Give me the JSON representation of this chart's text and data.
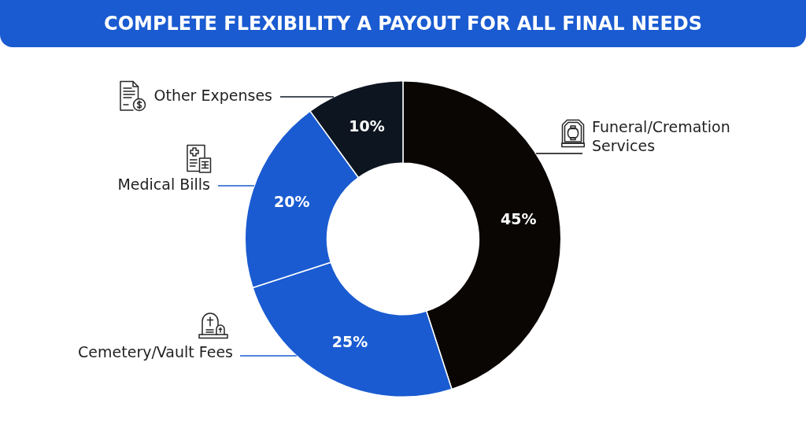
{
  "chart_data": {
    "type": "donut",
    "title": "COMPLETE FLEXIBILITY A PAYOUT FOR ALL FINAL NEEDS",
    "categories": [
      "Funeral/Cremation Services",
      "Cemetery/Vault Fees",
      "Medical Bills",
      "Other Expenses"
    ],
    "values": [
      45,
      25,
      20,
      10
    ],
    "colors": [
      "#0a0604",
      "#1a5bd1",
      "#1a5bd1",
      "#0d1520"
    ],
    "value_labels": [
      "45%",
      "25%",
      "20%",
      "10%"
    ]
  }
}
